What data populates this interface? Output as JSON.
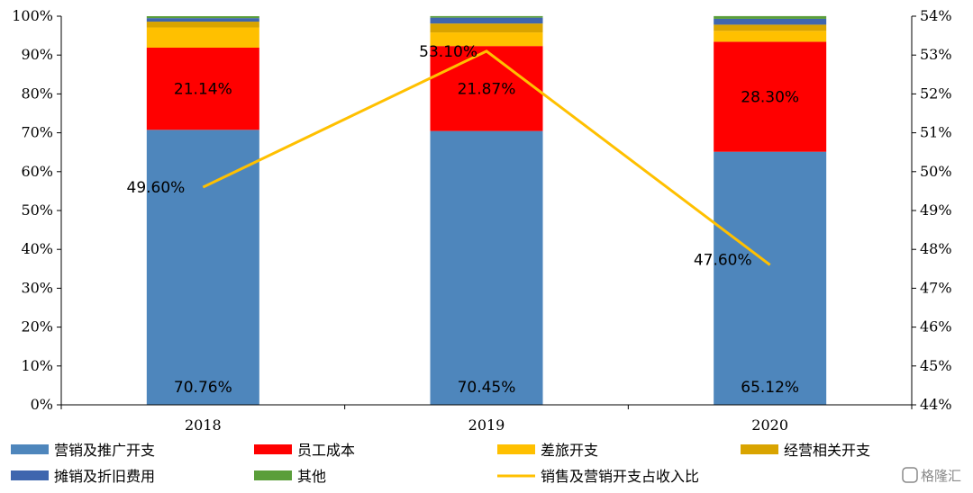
{
  "chart_data": {
    "type": "bar",
    "stacked": true,
    "categories": [
      "2018",
      "2019",
      "2020"
    ],
    "series": [
      {
        "name": "营销及推广开支",
        "color": "#4E86BC",
        "values": [
          70.76,
          70.45,
          65.12
        ],
        "labels": [
          "70.76%",
          "70.45%",
          "65.12%"
        ]
      },
      {
        "name": "员工成本",
        "color": "#FF0000",
        "values": [
          21.14,
          21.87,
          28.3
        ],
        "labels": [
          "21.14%",
          "21.87%",
          "28.30%"
        ]
      },
      {
        "name": "差旅开支",
        "color": "#FFC000",
        "values": [
          5.2,
          3.5,
          2.8
        ]
      },
      {
        "name": "经营相关开支",
        "color": "#D9A400",
        "values": [
          1.5,
          2.3,
          1.6
        ]
      },
      {
        "name": "摊销及折旧费用",
        "color": "#3F66AE",
        "values": [
          0.9,
          1.5,
          1.5
        ]
      },
      {
        "name": "其他",
        "color": "#5A9E3A",
        "values": [
          0.5,
          0.4,
          0.7
        ]
      }
    ],
    "line": {
      "name": "销售及营销开支占收入比",
      "color": "#FFC000",
      "values": [
        49.6,
        53.1,
        47.6
      ],
      "labels": [
        "49.60%",
        "53.10%",
        "47.60%"
      ]
    },
    "left_axis": {
      "ylim": [
        0,
        100
      ],
      "ticks": [
        "0%",
        "10%",
        "20%",
        "30%",
        "40%",
        "50%",
        "60%",
        "70%",
        "80%",
        "90%",
        "100%"
      ]
    },
    "right_axis": {
      "ylim": [
        44,
        54
      ],
      "ticks": [
        "44%",
        "45%",
        "46%",
        "47%",
        "48%",
        "49%",
        "50%",
        "51%",
        "52%",
        "53%",
        "54%"
      ]
    },
    "title": "",
    "xlabel": "",
    "ylabel": "",
    "legend_position": "bottom",
    "grid": false
  },
  "watermark": {
    "text": "格隆汇"
  }
}
